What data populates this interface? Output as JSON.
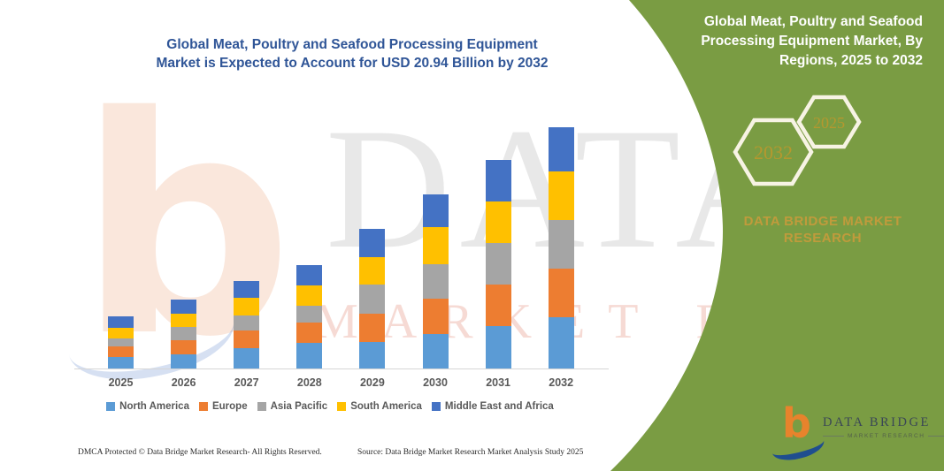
{
  "chart": {
    "title_line1": "Global Meat, Poultry and Seafood Processing Equipment",
    "title_line2": "Market is Expected to Account for USD 20.94 Billion by 2032",
    "title_color": "#2F5597"
  },
  "chart_data": {
    "type": "bar",
    "stacked": true,
    "unit": "USD Billion",
    "categories": [
      "2025",
      "2026",
      "2027",
      "2028",
      "2029",
      "2030",
      "2031",
      "2032"
    ],
    "series": [
      {
        "name": "North America",
        "color": "#5B9BD5",
        "values": [
          1.05,
          1.27,
          1.8,
          2.3,
          2.36,
          3.05,
          3.71,
          4.53
        ]
      },
      {
        "name": "Europe",
        "color": "#ED7D31",
        "values": [
          0.93,
          1.27,
          1.57,
          1.73,
          2.47,
          3.05,
          3.6,
          4.2
        ]
      },
      {
        "name": "Asia Pacific",
        "color": "#A5A5A5",
        "values": [
          0.7,
          1.14,
          1.27,
          1.5,
          2.48,
          2.97,
          3.58,
          4.2
        ]
      },
      {
        "name": "South America",
        "color": "#FFC000",
        "values": [
          0.92,
          1.14,
          1.52,
          1.73,
          2.39,
          3.18,
          3.63,
          4.2
        ]
      },
      {
        "name": "Middle East and Africa",
        "color": "#4472C4",
        "values": [
          0.95,
          1.19,
          1.48,
          1.76,
          2.41,
          2.85,
          3.58,
          3.81
        ]
      }
    ],
    "title": "Global Meat, Poultry and Seafood Processing Equipment Market is Expected to Account for USD 20.94 Billion by 2032",
    "xlabel": "",
    "ylabel": "",
    "ylim": [
      0,
      20.94
    ],
    "grid": false,
    "legend_position": "bottom",
    "annotation": "Total market value in 2032: USD 20.94 Billion"
  },
  "panel": {
    "green": "#7A9C43",
    "gold": "#C09B3C",
    "title_line1": "Global Meat, Poultry and Seafood",
    "title_line2": "Processing Equipment Market, By",
    "title_line3": "Regions, 2025 to 2032",
    "hex_back_label": "2032",
    "hex_front_label": "2025",
    "brand_line1": "DATA BRIDGE MARKET",
    "brand_line2": "RESEARCH"
  },
  "logo": {
    "b_glyph": "b",
    "name": "DATA BRIDGE",
    "sub": "MARKET RESEARCH"
  },
  "watermark": {
    "line1": "DATA BRIDGE",
    "line2": "MARKET RESEARCH",
    "big_b": "b"
  },
  "footer": {
    "left": "DMCA Protected © Data Bridge Market Research-  All Rights Reserved.",
    "right": "Source: Data Bridge Market Research  Market Analysis Study 2025"
  }
}
